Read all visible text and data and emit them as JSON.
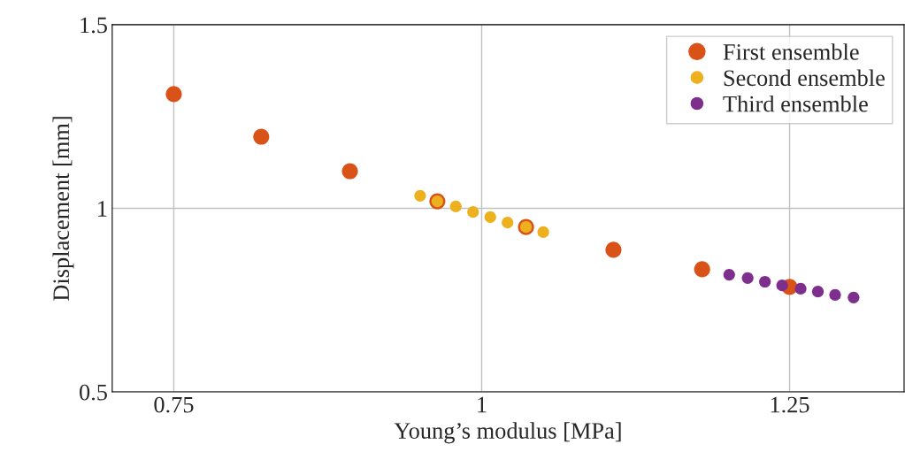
{
  "chart_data": {
    "type": "scatter",
    "xlabel": "Young’s modulus [MPa]",
    "ylabel": "Displacement [mm]",
    "xlim": [
      0.7,
      1.343
    ],
    "ylim": [
      0.5,
      1.5
    ],
    "xticks": [
      0.75,
      1,
      1.25
    ],
    "yticks": [
      0.5,
      1,
      1.5
    ],
    "grid": true,
    "legend": "top right",
    "marker": "circle",
    "series": [
      {
        "name": "First ensemble",
        "color": "#d95319",
        "x": [
          0.75,
          0.821,
          0.893,
          0.964,
          1.036,
          1.107,
          1.179,
          1.25
        ],
        "values": [
          1.311,
          1.195,
          1.101,
          1.019,
          0.949,
          0.887,
          0.834,
          0.786
        ]
      },
      {
        "name": "Second ensemble",
        "color": "#edb120",
        "x": [
          0.95,
          0.964,
          0.979,
          0.993,
          1.007,
          1.021,
          1.036,
          1.05
        ],
        "values": [
          1.034,
          1.019,
          1.005,
          0.99,
          0.976,
          0.961,
          0.949,
          0.935
        ]
      },
      {
        "name": "Third ensemble",
        "color": "#7e2f8e",
        "x": [
          1.201,
          1.216,
          1.23,
          1.244,
          1.259,
          1.273,
          1.287,
          1.302
        ],
        "values": [
          0.819,
          0.81,
          0.8,
          0.79,
          0.781,
          0.773,
          0.764,
          0.757
        ]
      }
    ]
  }
}
